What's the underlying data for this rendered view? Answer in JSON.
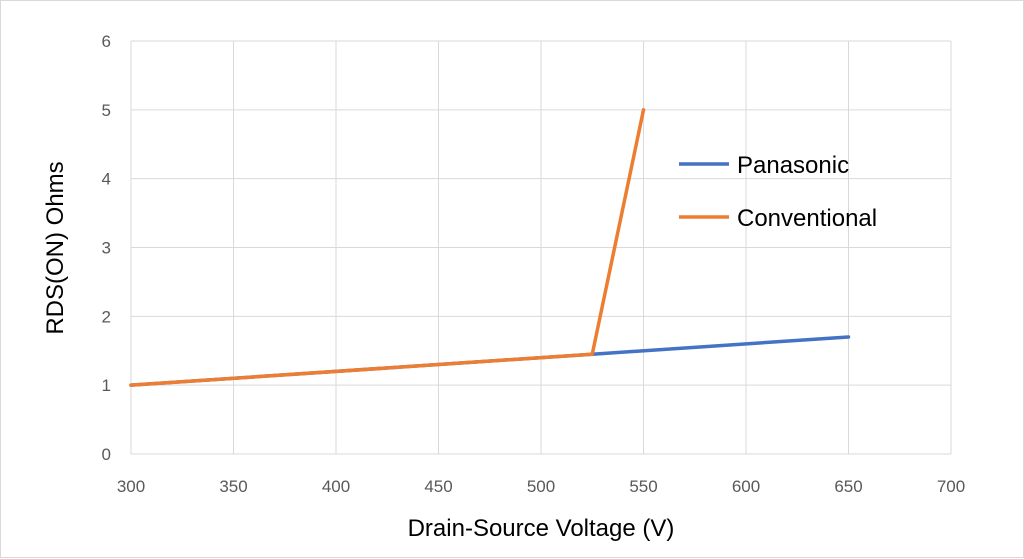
{
  "chart_data": {
    "type": "line",
    "xlabel": "Drain-Source Voltage (V)",
    "ylabel": "RDS(ON) Ohms",
    "xlim": [
      300,
      700
    ],
    "ylim": [
      0,
      6
    ],
    "x_ticks": [
      300,
      350,
      400,
      450,
      500,
      550,
      600,
      650,
      700
    ],
    "y_ticks": [
      0,
      1,
      2,
      3,
      4,
      5,
      6
    ],
    "grid": true,
    "legend_position": "right",
    "series": [
      {
        "name": "Panasonic",
        "color": "#4472c4",
        "points": [
          [
            300,
            1.0
          ],
          [
            525,
            1.45
          ],
          [
            650,
            1.7
          ]
        ]
      },
      {
        "name": "Conventional",
        "color": "#ed7d31",
        "points": [
          [
            300,
            1.0
          ],
          [
            525,
            1.45
          ],
          [
            550,
            5.0
          ]
        ]
      }
    ]
  }
}
